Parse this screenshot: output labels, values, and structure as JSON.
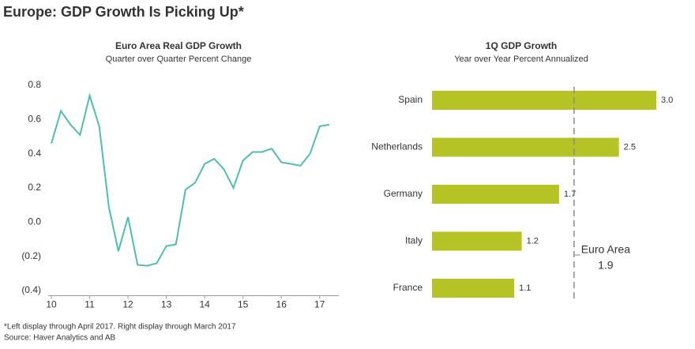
{
  "title": "Europe: GDP Growth Is Picking Up*",
  "footnotes": [
    "*Left display through April 2017. Right display through March 2017",
    "Source: Haver Analytics and AB"
  ],
  "chart_data": [
    {
      "type": "line",
      "title": "Euro Area Real GDP Growth",
      "subtitle": "Quarter over Quarter Percent Change",
      "x": [
        10,
        10.25,
        10.5,
        10.75,
        11,
        11.25,
        11.5,
        11.75,
        12,
        12.25,
        12.5,
        12.75,
        13,
        13.25,
        13.5,
        13.75,
        14,
        14.25,
        14.5,
        14.75,
        15,
        15.25,
        15.5,
        15.75,
        16,
        16.25,
        16.5,
        16.75,
        17,
        17.25
      ],
      "series": [
        {
          "color": "#4dbfae",
          "values": [
            0.46,
            0.65,
            0.57,
            0.51,
            0.74,
            0.56,
            0.09,
            -0.17,
            0.03,
            -0.25,
            -0.255,
            -0.24,
            -0.14,
            -0.13,
            0.19,
            0.23,
            0.34,
            0.37,
            0.31,
            0.2,
            0.36,
            0.41,
            0.41,
            0.43,
            0.35,
            0.34,
            0.33,
            0.4,
            0.56,
            0.57
          ]
        }
      ],
      "xlim": [
        10,
        17.5
      ],
      "xticks": [
        10,
        11,
        12,
        13,
        14,
        15,
        16,
        17
      ],
      "ylim": [
        -0.43,
        0.8
      ],
      "yticks": [
        0.8,
        0.6,
        0.4,
        0.2,
        {
          "value": 0,
          "label": "0.0"
        },
        {
          "value": -0.2,
          "label": "(0.2)"
        },
        {
          "value": -0.4,
          "label": "(0.4)"
        }
      ]
    },
    {
      "type": "hbar",
      "title": "1Q GDP Growth",
      "subtitle": "Year over Year Percent Annualized",
      "categories": [
        "Spain",
        "Netherlands",
        "Germany",
        "Italy",
        "France"
      ],
      "values": [
        3,
        2.5,
        1.7,
        1.2,
        1.1
      ],
      "value_labels": [
        "3.0",
        "2.5",
        "1.7",
        "1.2",
        "1.1"
      ],
      "color": "#b5c424",
      "xlim": [
        0,
        3
      ],
      "reference": {
        "label": "Euro Area",
        "value": 1.9
      }
    }
  ]
}
